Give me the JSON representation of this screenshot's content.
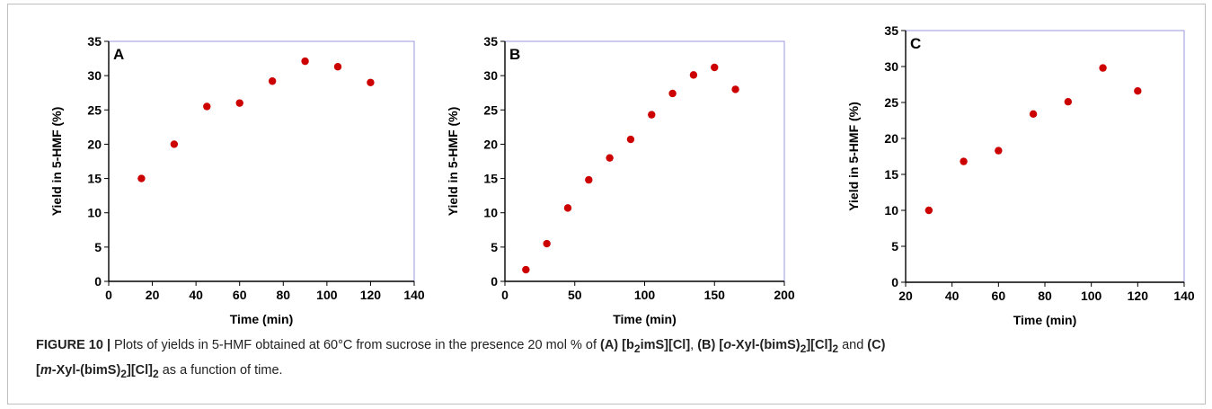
{
  "colors": {
    "marker": "#cc0000",
    "plot_border": "#9999dd",
    "axis": "#000000",
    "frame": "#bfbfbf"
  },
  "chart_data": [
    {
      "type": "scatter",
      "panel_label": "A",
      "xlabel": "Time (min)",
      "ylabel": "Yield in 5-HMF (%)",
      "xlim": [
        0,
        140
      ],
      "ylim": [
        0,
        35
      ],
      "xticks": [
        0,
        20,
        40,
        60,
        80,
        100,
        120,
        140
      ],
      "yticks": [
        0,
        5,
        10,
        15,
        20,
        25,
        30,
        35
      ],
      "grid": false,
      "points": [
        [
          15,
          15
        ],
        [
          30,
          20
        ],
        [
          45,
          25.5
        ],
        [
          60,
          26
        ],
        [
          75,
          29.2
        ],
        [
          90,
          32.1
        ],
        [
          105,
          31.3
        ],
        [
          120,
          29
        ]
      ]
    },
    {
      "type": "scatter",
      "panel_label": "B",
      "xlabel": "Time (min)",
      "ylabel": "Yield in 5-HMF (%)",
      "xlim": [
        0,
        200
      ],
      "ylim": [
        0,
        35
      ],
      "xticks": [
        0,
        50,
        100,
        150,
        200
      ],
      "yticks": [
        0,
        5,
        10,
        15,
        20,
        25,
        30,
        35
      ],
      "grid": false,
      "points": [
        [
          15,
          1.7
        ],
        [
          30,
          5.5
        ],
        [
          45,
          10.7
        ],
        [
          60,
          14.8
        ],
        [
          75,
          18
        ],
        [
          90,
          20.7
        ],
        [
          105,
          24.3
        ],
        [
          120,
          27.4
        ],
        [
          135,
          30.1
        ],
        [
          150,
          31.2
        ],
        [
          165,
          28
        ]
      ]
    },
    {
      "type": "scatter",
      "panel_label": "C",
      "xlabel": "Time (min)",
      "ylabel": "Yield in 5-HMF (%)",
      "xlim": [
        20,
        140
      ],
      "ylim": [
        0,
        35
      ],
      "xticks": [
        20,
        40,
        60,
        80,
        100,
        120,
        140
      ],
      "yticks": [
        0,
        5,
        10,
        15,
        20,
        25,
        30,
        35
      ],
      "grid": false,
      "points": [
        [
          30,
          10
        ],
        [
          45,
          16.8
        ],
        [
          60,
          18.3
        ],
        [
          75,
          23.4
        ],
        [
          90,
          25.1
        ],
        [
          105,
          29.8
        ],
        [
          120,
          26.6
        ]
      ]
    }
  ],
  "caption": {
    "label": "FIGURE 10 |",
    "t1": " Plots of yields in 5-HMF obtained at 60°C from sucrose in the presence 20 mol % of ",
    "a_label": "(A) [b",
    "a_sub": "2",
    "a_rest": "imS][Cl]",
    "sep1": ", ",
    "b_label": "(B) [",
    "b_o": "o",
    "b_rest": "-Xyl-(bimS)",
    "b_sub": "2",
    "b_rest2": "][Cl]",
    "b_sub2": "2",
    "and_text": " and ",
    "c_label": "(C)",
    "c_open": "[",
    "c_m": "m",
    "c_rest": "-Xyl-(bimS)",
    "c_sub": "2",
    "c_rest2": "][Cl]",
    "c_sub2": "2",
    "t_end": " as a function of time."
  }
}
